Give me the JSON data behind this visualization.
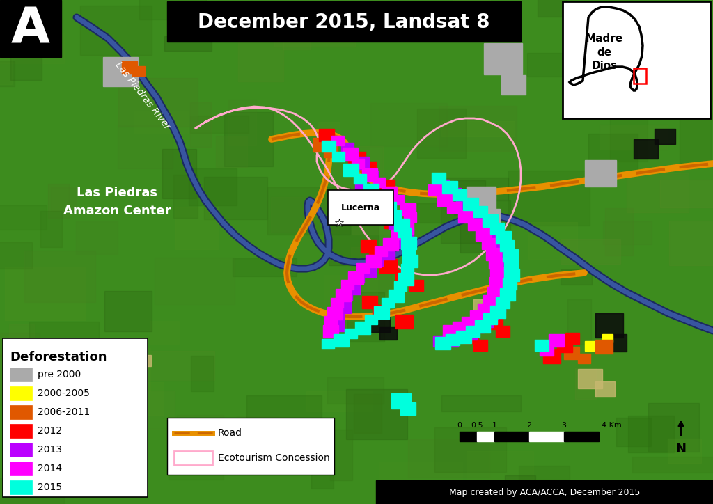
{
  "title": "December 2015, Landsat 8",
  "title_fontsize": 20,
  "panel_label": "A",
  "panel_label_fontsize": 52,
  "bg_color": "#3d8c1e",
  "legend_title": "Deforestation",
  "legend_items": [
    {
      "label": "pre 2000",
      "color": "#aaaaaa"
    },
    {
      "label": "2000-2005",
      "color": "#ffff00"
    },
    {
      "label": "2006-2011",
      "color": "#e05800"
    },
    {
      "label": "2012",
      "color": "#ff0000"
    },
    {
      "label": "2013",
      "color": "#bb00ff"
    },
    {
      "label": "2014",
      "color": "#ff00ff"
    },
    {
      "label": "2015",
      "color": "#00ffdd"
    }
  ],
  "road_color": "#e89000",
  "road_color2": "#cc6600",
  "concession_color": "#ffaacc",
  "inset_title": "Madre\nde\nDios",
  "credit": "Map created by ACA/ACCA, December 2015",
  "lucerna_label": "Lucerna",
  "las_piedras_label": "Las Piedras\nAmazon Center",
  "river_label": "Las Piedras River"
}
